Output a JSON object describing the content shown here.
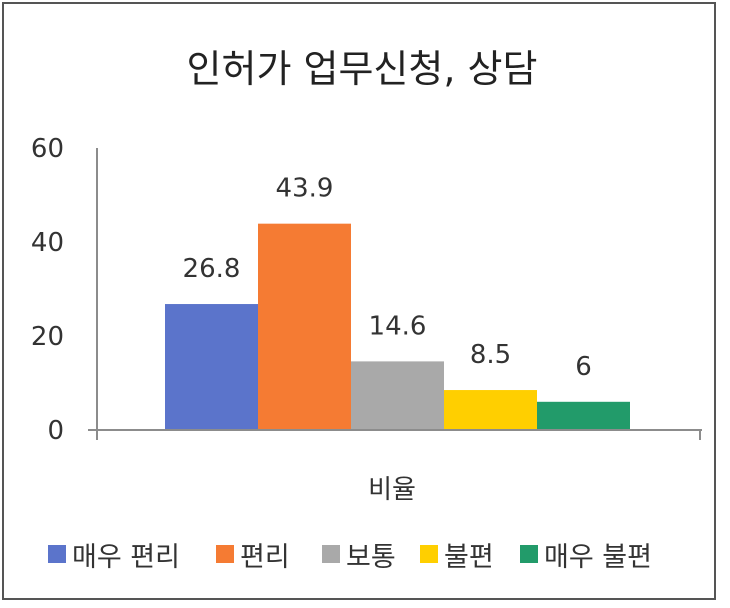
{
  "chart_data": {
    "type": "bar",
    "title": "인허가 업무신청, 상담",
    "categories": [
      "비율"
    ],
    "series": [
      {
        "name": "매우 편리",
        "values": [
          26.8
        ],
        "color": "#5B74CB"
      },
      {
        "name": "편리",
        "values": [
          43.9
        ],
        "color": "#F57B33"
      },
      {
        "name": "보통",
        "values": [
          14.6
        ],
        "color": "#A9A9A9"
      },
      {
        "name": "불편",
        "values": [
          8.5
        ],
        "color": "#FFCF00"
      },
      {
        "name": "매우 불편",
        "values": [
          6
        ],
        "color": "#229B6A"
      }
    ],
    "xlabel": "",
    "ylabel": "",
    "ylim": [
      0,
      60
    ],
    "yticks": [
      0,
      20,
      40,
      60
    ],
    "grid": false,
    "legend": "bottom",
    "data_labels": true
  }
}
